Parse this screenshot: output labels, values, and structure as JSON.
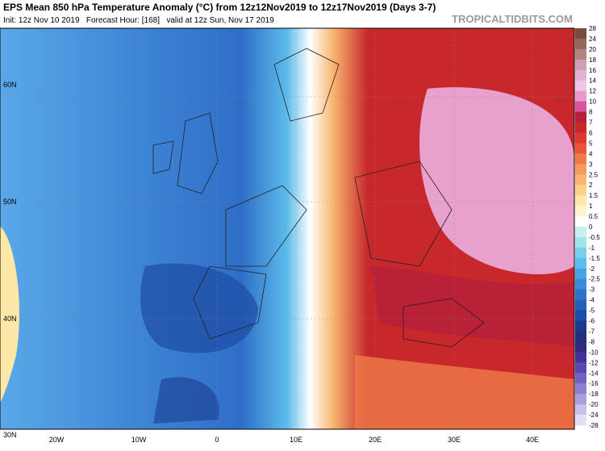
{
  "header": {
    "title": "EPS Mean 850 hPa Temperature Anomaly (°C) from 12z12Nov2019 to 12z17Nov2019 (Days 3-7)",
    "subtitle": "Init: 12z Nov 10 2019   Forecast Hour: [168]   valid at 12z Sun, Nov 17 2019",
    "brand": "TROPICALTIDBITS.COM"
  },
  "map": {
    "lat_labels": [
      "60N",
      "50N",
      "40N",
      "30N"
    ],
    "lon_labels": [
      "20W",
      "10W",
      "0",
      "10E",
      "20E",
      "30E",
      "40E"
    ]
  },
  "colorbar": {
    "labels": [
      "28",
      "24",
      "20",
      "18",
      "16",
      "14",
      "12",
      "10",
      "8",
      "7",
      "6",
      "5",
      "4",
      "3",
      "2.5",
      "2",
      "1.5",
      "1",
      "0.5",
      "0",
      "-0.5",
      "-1",
      "-1.5",
      "-2",
      "-2.5",
      "-3",
      "-4",
      "-5",
      "-6",
      "-7",
      "-8",
      "-10",
      "-12",
      "-14",
      "-16",
      "-18",
      "-20",
      "-24",
      "-28"
    ],
    "colors": [
      "#7a4b3c",
      "#96665a",
      "#b2857e",
      "#cf9fb5",
      "#e2b2d2",
      "#f0c6e4",
      "#ea98cb",
      "#d9559a",
      "#b51f3b",
      "#c8282c",
      "#dc3a2c",
      "#e8553a",
      "#f07a48",
      "#f49a5a",
      "#f8b670",
      "#fbd28a",
      "#fde8a8",
      "#fff4cc",
      "#ffffff",
      "#c8f0f4",
      "#a0e4ec",
      "#7ad0ea",
      "#5cbcea",
      "#46a4e4",
      "#3a8ada",
      "#2f72cc",
      "#255eb8",
      "#1e4ca4",
      "#1a3c90",
      "#20307e",
      "#2e2a80",
      "#43349a",
      "#5a48b0",
      "#7462c2",
      "#8e80d0",
      "#aaa0de",
      "#c6c0ea",
      "#e2deF6"
    ]
  }
}
